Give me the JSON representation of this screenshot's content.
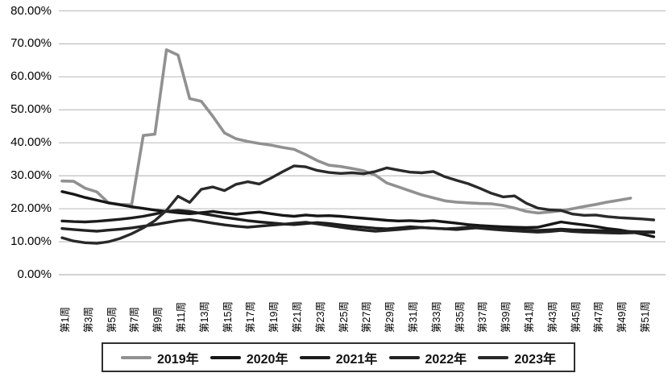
{
  "chart": {
    "y_axis_labels": [
      "0.00%",
      "10.00%",
      "20.00%",
      "30.00%",
      "40.00%",
      "50.00%",
      "60.00%",
      "70.00%",
      "80.00%"
    ],
    "x_axis_labels": [
      "第1周",
      "第3周",
      "第5周",
      "第7周",
      "第9周",
      "第11周",
      "第13周",
      "第15周",
      "第17周",
      "第19周",
      "第21周",
      "第23周",
      "第25周",
      "第27周",
      "第29周",
      "第31周",
      "第33周",
      "第35周",
      "第37周",
      "第39周",
      "第41周",
      "第43周",
      "第45周",
      "第47周",
      "第49周",
      "第51周"
    ],
    "legend_labels": [
      "2019年",
      "2020年",
      "2021年",
      "2022年",
      "2023年"
    ]
  },
  "chart_data": {
    "type": "line",
    "title": "",
    "xlabel": "",
    "ylabel": "",
    "x_unit": "week_of_year",
    "x_range": [
      1,
      52
    ],
    "ylim": [
      0,
      80
    ],
    "y_tick_step": 10,
    "y_tick_format": "0.00%",
    "x_tick_labels": [
      "第1周",
      "第3周",
      "第5周",
      "第7周",
      "第9周",
      "第11周",
      "第13周",
      "第15周",
      "第17周",
      "第19周",
      "第21周",
      "第23周",
      "第25周",
      "第27周",
      "第29周",
      "第31周",
      "第33周",
      "第35周",
      "第37周",
      "第39周",
      "第41周",
      "第43周",
      "第45周",
      "第47周",
      "第49周",
      "第51周"
    ],
    "grid": "horizontal",
    "legend_position": "bottom-boxed",
    "series": [
      {
        "name": "2019年",
        "color": "#919191",
        "line_width": 3.6,
        "start_week": 1,
        "values": [
          28.4,
          28.3,
          26.2,
          25.1,
          21.8,
          21.3,
          21.2,
          42.2,
          42.6,
          68.2,
          66.6,
          53.4,
          52.6,
          48.0,
          43.0,
          41.2,
          40.4,
          39.8,
          39.3,
          38.6,
          38.0,
          36.4,
          34.6,
          33.2,
          32.8,
          32.2,
          31.5,
          30.2,
          27.8,
          26.6,
          25.4,
          24.2,
          23.3,
          22.4,
          22.0,
          21.8,
          21.6,
          21.5,
          21.0,
          20.2,
          19.2,
          18.7,
          19.0,
          19.4,
          20.0,
          20.7,
          21.3,
          22.0,
          22.6,
          23.2
        ]
      },
      {
        "name": "2020年",
        "color": "#161616",
        "line_width": 3.4,
        "start_week": 1,
        "values": [
          25.2,
          24.4,
          23.4,
          22.6,
          21.8,
          21.2,
          20.6,
          20.1,
          19.6,
          19.2,
          18.8,
          18.5,
          18.8,
          19.2,
          18.7,
          18.3,
          18.7,
          19.0,
          18.5,
          18.0,
          17.7,
          18.1,
          17.8,
          17.9,
          17.7,
          17.4,
          17.1,
          16.8,
          16.5,
          16.3,
          16.4,
          16.2,
          16.4,
          16.0,
          15.6,
          15.2,
          14.9,
          14.7,
          14.5,
          14.4,
          14.3,
          14.4,
          15.2,
          16.0,
          15.5,
          15.1,
          14.6,
          14.0,
          13.6,
          13.0,
          12.3,
          11.5
        ]
      },
      {
        "name": "2021年",
        "color": "#1d1d1d",
        "line_width": 3.4,
        "start_week": 1,
        "values": [
          16.3,
          16.1,
          16.0,
          16.2,
          16.5,
          16.8,
          17.2,
          17.7,
          18.4,
          19.2,
          19.5,
          19.2,
          18.6,
          18.0,
          17.4,
          16.9,
          16.4,
          16.0,
          15.7,
          15.4,
          15.2,
          15.5,
          15.8,
          15.5,
          15.1,
          14.7,
          14.4,
          14.1,
          13.9,
          14.2,
          14.5,
          14.3,
          14.1,
          13.9,
          13.7,
          14.0,
          14.3,
          14.1,
          13.9,
          13.7,
          13.5,
          13.4,
          13.6,
          13.8,
          13.6,
          13.5,
          13.4,
          13.3,
          13.2,
          13.1,
          13.0,
          13.0
        ]
      },
      {
        "name": "2022年",
        "color": "#232323",
        "line_width": 3.4,
        "start_week": 1,
        "values": [
          14.0,
          13.7,
          13.4,
          13.2,
          13.5,
          13.8,
          14.2,
          14.7,
          15.2,
          15.8,
          16.4,
          16.7,
          16.2,
          15.6,
          15.1,
          14.7,
          14.4,
          14.7,
          15.0,
          15.3,
          15.6,
          15.9,
          15.4,
          14.9,
          14.4,
          13.9,
          13.5,
          13.2,
          13.4,
          13.7,
          14.0,
          14.3,
          14.1,
          13.9,
          14.1,
          14.4,
          14.1,
          13.8,
          13.5,
          13.3,
          13.1,
          12.9,
          13.1,
          13.4,
          13.1,
          12.9,
          12.8,
          12.7,
          12.6,
          12.7,
          12.8,
          12.8
        ]
      },
      {
        "name": "2023年",
        "color": "#2a2a2a",
        "line_width": 3.4,
        "start_week": 1,
        "values": [
          11.2,
          10.2,
          9.7,
          9.5,
          10.0,
          11.0,
          12.4,
          14.2,
          16.4,
          19.5,
          23.8,
          21.9,
          25.9,
          26.6,
          25.5,
          27.4,
          28.2,
          27.5,
          29.3,
          31.2,
          33.0,
          32.7,
          31.6,
          31.0,
          30.7,
          30.9,
          30.6,
          31.3,
          32.4,
          31.7,
          31.1,
          30.9,
          31.3,
          29.7,
          28.6,
          27.6,
          26.2,
          24.7,
          23.6,
          23.9,
          21.7,
          20.2,
          19.7,
          19.5,
          18.4,
          18.0,
          18.1,
          17.6,
          17.3,
          17.1,
          16.9,
          16.6
        ]
      }
    ],
    "style": {
      "gridline_color": "#b9b9b9",
      "axis_line_color": "#a3a3a3",
      "background": "#ffffff",
      "legend_border_color": "#2f2f2f"
    }
  }
}
